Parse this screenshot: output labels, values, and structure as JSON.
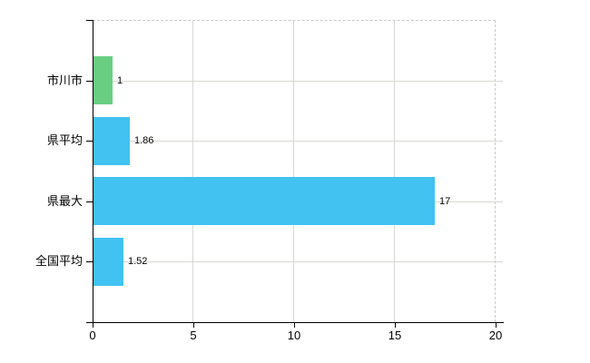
{
  "chart_data": {
    "type": "bar",
    "orientation": "horizontal",
    "title": "",
    "xlabel": "",
    "ylabel": "",
    "categories": [
      "市川市",
      "県平均",
      "県最大",
      "全国平均"
    ],
    "values": [
      1,
      1.86,
      17,
      1.52
    ],
    "value_labels": [
      "1",
      "1.86",
      "17",
      "1.52"
    ],
    "series": [
      {
        "name": "",
        "values": [
          1,
          1.86,
          17,
          1.52
        ],
        "bar_colors": [
          "#69ce81",
          "#41c2f0",
          "#41c2f0",
          "#41c2f0"
        ]
      }
    ],
    "xlim": [
      0,
      20
    ],
    "x_ticks": [
      0,
      5,
      10,
      15,
      20
    ],
    "x_tick_labels": [
      "0",
      "5",
      "10",
      "15",
      "20"
    ],
    "grid": true,
    "legend": "none",
    "colors": {
      "background": "#ffffff",
      "bar_green": "#69ce81",
      "bar_blue": "#41c2f0",
      "gridline": "#d7d7d2",
      "dashed_border": "#c6cac6",
      "axis": "#000000",
      "text": "#000000"
    }
  }
}
